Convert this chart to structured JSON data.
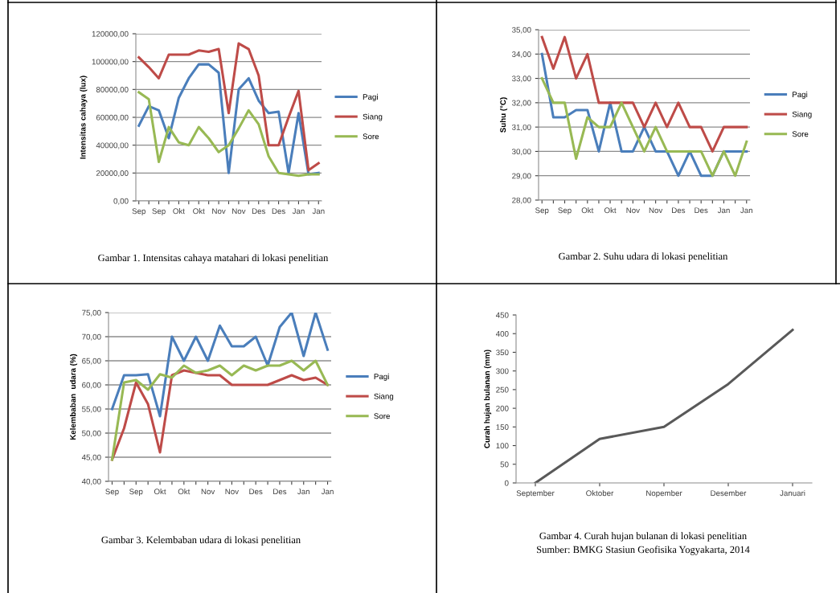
{
  "chart_data": [
    {
      "type": "line",
      "ylabel": "Intensitas cahaya (lux)",
      "categories": [
        "Sep",
        null,
        "Sep",
        null,
        "Okt",
        null,
        "Okt",
        null,
        "Nov",
        null,
        "Nov",
        null,
        "Des",
        null,
        "Des",
        null,
        "Jan",
        null,
        "Jan"
      ],
      "series": [
        {
          "name": "Pagi",
          "color": "#4a7ebb",
          "values": [
            54000,
            68000,
            65000,
            45000,
            74000,
            88000,
            98000,
            98000,
            92000,
            20000,
            80000,
            88000,
            72000,
            63000,
            64000,
            20000,
            63000,
            19000,
            20000
          ]
        },
        {
          "name": "Siang",
          "color": "#be4b48",
          "values": [
            103000,
            96000,
            88000,
            105000,
            105000,
            105000,
            108000,
            107000,
            109000,
            63000,
            113000,
            109000,
            90000,
            40000,
            40000,
            60000,
            79000,
            22000,
            27000
          ]
        },
        {
          "name": "Sore",
          "color": "#98b954",
          "values": [
            78000,
            73000,
            28000,
            53000,
            42000,
            40000,
            53000,
            45000,
            35000,
            40000,
            52000,
            65000,
            55000,
            32000,
            20000,
            19000,
            18000,
            19000,
            19000
          ]
        }
      ],
      "ylim": [
        0,
        120000
      ],
      "yticks": [
        {
          "value": 0,
          "label": "0,00"
        },
        {
          "value": 20000,
          "label": "20000,00"
        },
        {
          "value": 40000,
          "label": "40000,00"
        },
        {
          "value": 60000,
          "label": "60000,00"
        },
        {
          "value": 80000,
          "label": "80000,00"
        },
        {
          "value": 100000,
          "label": "100000,00"
        },
        {
          "value": 120000,
          "label": "120000,00"
        }
      ],
      "grid": "y",
      "legend": "right",
      "annotations": [
        "Gambar 1. Intensitas cahaya matahari di lokasi penelitian"
      ]
    },
    {
      "type": "line",
      "ylabel": "Suhu (°C)",
      "categories": [
        "Sep",
        null,
        "Sep",
        null,
        "Okt",
        null,
        "Okt",
        null,
        "Nov",
        null,
        "Nov",
        null,
        "Des",
        null,
        "Des",
        null,
        "Jan",
        null,
        "Jan"
      ],
      "series": [
        {
          "name": "Pagi",
          "color": "#4a7ebb",
          "values": [
            34.0,
            31.4,
            31.4,
            31.7,
            31.7,
            30.0,
            32.0,
            30.0,
            30.0,
            31.0,
            30.0,
            30.0,
            29.0,
            30.0,
            29.0,
            29.0,
            30.0,
            30.0,
            30.0
          ]
        },
        {
          "name": "Siang",
          "color": "#be4b48",
          "values": [
            34.7,
            33.4,
            34.7,
            33.0,
            34.0,
            32.0,
            32.0,
            32.0,
            32.0,
            31.0,
            32.0,
            31.0,
            32.0,
            31.0,
            31.0,
            30.0,
            31.0,
            31.0,
            31.0
          ]
        },
        {
          "name": "Sore",
          "color": "#98b954",
          "values": [
            33.0,
            32.0,
            32.0,
            29.7,
            31.4,
            31.0,
            31.0,
            32.0,
            31.0,
            30.0,
            31.0,
            30.0,
            30.0,
            30.0,
            30.0,
            29.0,
            30.0,
            29.0,
            30.4
          ]
        }
      ],
      "ylim": [
        28,
        35
      ],
      "yticks": [
        {
          "value": 28,
          "label": "28,00"
        },
        {
          "value": 29,
          "label": "29,00"
        },
        {
          "value": 30,
          "label": "30,00"
        },
        {
          "value": 31,
          "label": "31,00"
        },
        {
          "value": 32,
          "label": "32,00"
        },
        {
          "value": 33,
          "label": "33,00"
        },
        {
          "value": 34,
          "label": "34,00"
        },
        {
          "value": 35,
          "label": "35,00"
        }
      ],
      "grid": "y",
      "legend": "right",
      "annotations": [
        "Gambar 2. Suhu udara di lokasi penelitian"
      ]
    },
    {
      "type": "line",
      "ylabel": "Kelembaban  udara (%)",
      "categories": [
        "Sep",
        null,
        "Sep",
        null,
        "Okt",
        null,
        "Okt",
        null,
        "Nov",
        null,
        "Nov",
        null,
        "Des",
        null,
        "Des",
        null,
        "Jan",
        null,
        "Jan"
      ],
      "series": [
        {
          "name": "Pagi",
          "color": "#4a7ebb",
          "values": [
            55,
            62,
            62,
            62.2,
            53.5,
            70,
            65,
            70,
            65,
            72.3,
            68,
            68,
            70,
            64,
            72,
            75,
            66,
            75,
            67.3
          ]
        },
        {
          "name": "Siang",
          "color": "#be4b48",
          "values": [
            44.5,
            51,
            60.5,
            56,
            46,
            62,
            63,
            62.5,
            62,
            62,
            60,
            60,
            60,
            60,
            61,
            62,
            61,
            61.5,
            60
          ]
        },
        {
          "name": "Sore",
          "color": "#98b954",
          "values": [
            44.5,
            60.5,
            61,
            59,
            62.2,
            61.5,
            64,
            62.5,
            63,
            64,
            62,
            64,
            63,
            64,
            64,
            65,
            63,
            65,
            60
          ]
        }
      ],
      "ylim": [
        40,
        75
      ],
      "yticks": [
        {
          "value": 40,
          "label": "40,00"
        },
        {
          "value": 45,
          "label": "45,00"
        },
        {
          "value": 50,
          "label": "50,00"
        },
        {
          "value": 55,
          "label": "55,00"
        },
        {
          "value": 60,
          "label": "60,00"
        },
        {
          "value": 65,
          "label": "65,00"
        },
        {
          "value": 70,
          "label": "70,00"
        },
        {
          "value": 75,
          "label": "75,00"
        }
      ],
      "grid": "y",
      "legend": "right",
      "annotations": [
        "Gambar 3. Kelembaban udara di lokasi penelitian"
      ]
    },
    {
      "type": "line",
      "ylabel": "Curah hujan bulanan (mm)",
      "categories": [
        "September",
        "Oktober",
        "Nopember",
        "Desember",
        "Januari"
      ],
      "series": [
        {
          "color": "#595959",
          "values": [
            0,
            118,
            150,
            265,
            410
          ]
        }
      ],
      "ylim": [
        0,
        450
      ],
      "yticks": [
        0,
        50,
        100,
        150,
        200,
        250,
        300,
        350,
        400,
        450
      ],
      "grid": false,
      "annotations": [
        "Gambar 4. Curah hujan bulanan di lokasi penelitian",
        "Sumber: BMKG Stasiun Geofisika Yogyakarta, 2014"
      ]
    }
  ]
}
